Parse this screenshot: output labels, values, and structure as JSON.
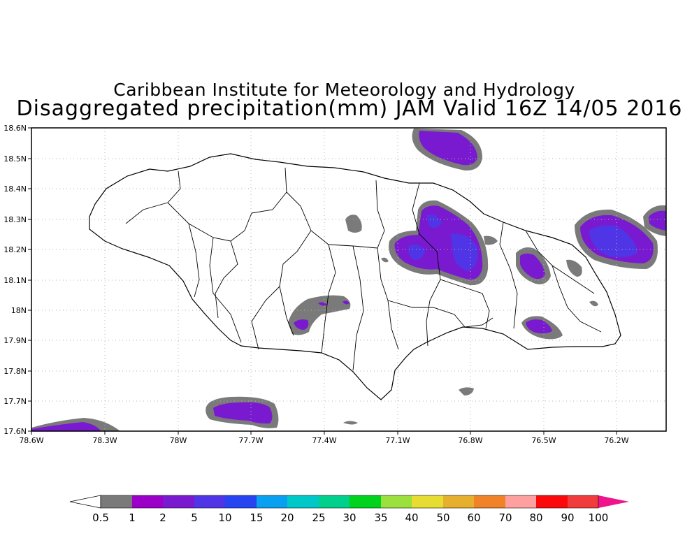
{
  "title": {
    "line1": "Caribbean Institute for Meteorology and Hydrology",
    "line2": "Disaggregated precipitation(mm) JAM Valid 16Z 14/05 2016"
  },
  "map": {
    "lat_range": [
      17.6,
      18.6
    ],
    "lon_range": [
      -78.6,
      -76.0
    ],
    "grid": "dotted",
    "lat_ticks": [
      "18.6N",
      "18.5N",
      "18.4N",
      "18.3N",
      "18.2N",
      "18.1N",
      "18N",
      "17.9N",
      "17.8N",
      "17.7N",
      "17.6N"
    ],
    "lon_ticks": [
      "78.6W",
      "78.3W",
      "78W",
      "77.7W",
      "77.4W",
      "77.1W",
      "76.8W",
      "76.5W",
      "76.2W"
    ]
  },
  "colorbar": {
    "colors": [
      "#7a7a7a",
      "#9a00c8",
      "#7a1ad0",
      "#5035e6",
      "#2645f0",
      "#0aa0f0",
      "#00c8c8",
      "#00d08c",
      "#00d21e",
      "#9be03c",
      "#e6dc32",
      "#e6af2d",
      "#f08228",
      "#ffa0a0",
      "#fa0a0a",
      "#f03c3c"
    ],
    "labels": [
      "0.5",
      "1",
      "2",
      "5",
      "10",
      "15",
      "20",
      "25",
      "30",
      "35",
      "40",
      "50",
      "60",
      "70",
      "80",
      "90",
      "100"
    ],
    "low_arrow_color": "#ffffff",
    "high_arrow_color": "#f0148c"
  },
  "precip_colors": {
    "gray": "#7a7a7a",
    "purple": "#9a00c8",
    "violet": "#7a1ad0",
    "blue": "#5035e6"
  }
}
